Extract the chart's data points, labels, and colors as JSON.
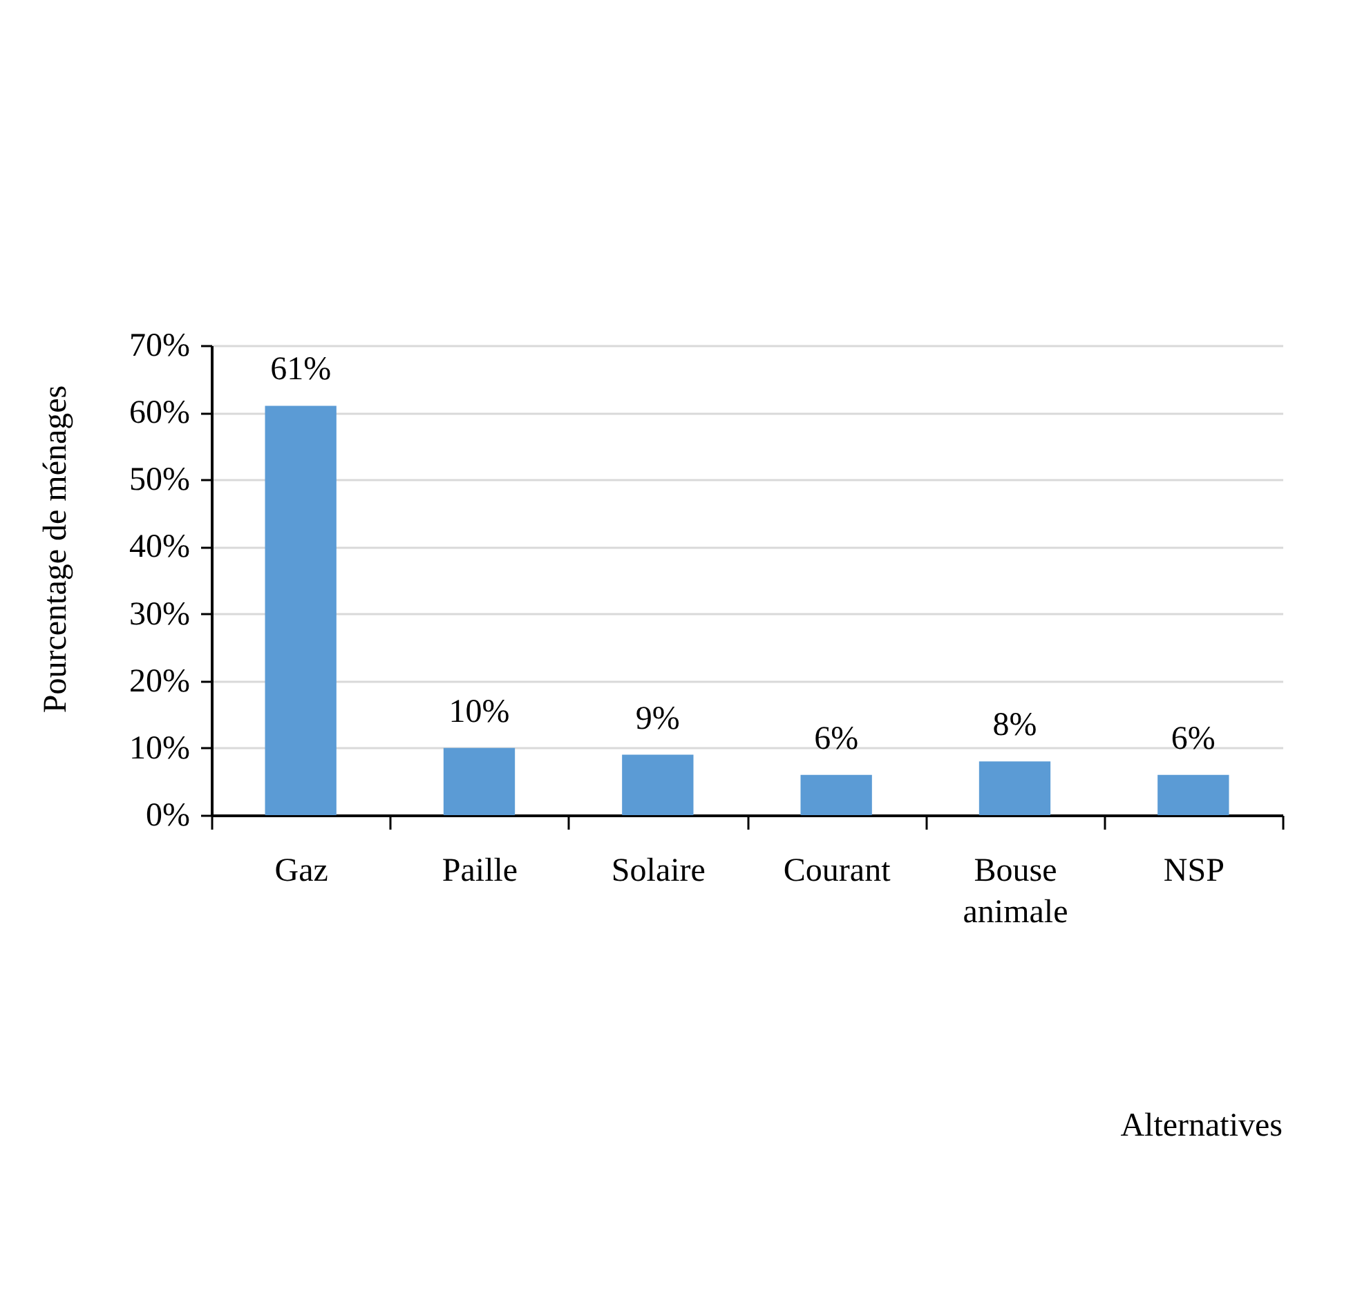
{
  "chart_data": {
    "type": "bar",
    "ylabel": "Pourcentage de ménages",
    "annotations": [
      "Alternatives"
    ],
    "categories": [
      "Gaz",
      "Paille",
      "Solaire",
      "Courant",
      "Bouse animale",
      "NSP"
    ],
    "values": [
      61,
      10,
      9,
      6,
      8,
      6
    ],
    "value_labels": [
      "61%",
      "10%",
      "9%",
      "6%",
      "8%",
      "6%"
    ],
    "color": "#5b9bd5",
    "ylim": [
      0,
      70
    ],
    "yticks": [
      {
        "value": 0,
        "label": "0%"
      },
      {
        "value": 10,
        "label": "10%"
      },
      {
        "value": 20,
        "label": "20%"
      },
      {
        "value": 30,
        "label": "30%"
      },
      {
        "value": 40,
        "label": "40%"
      },
      {
        "value": 50,
        "label": "50%"
      },
      {
        "value": 60,
        "label": "60%"
      },
      {
        "value": 70,
        "label": "70%"
      }
    ],
    "grid": "y"
  }
}
